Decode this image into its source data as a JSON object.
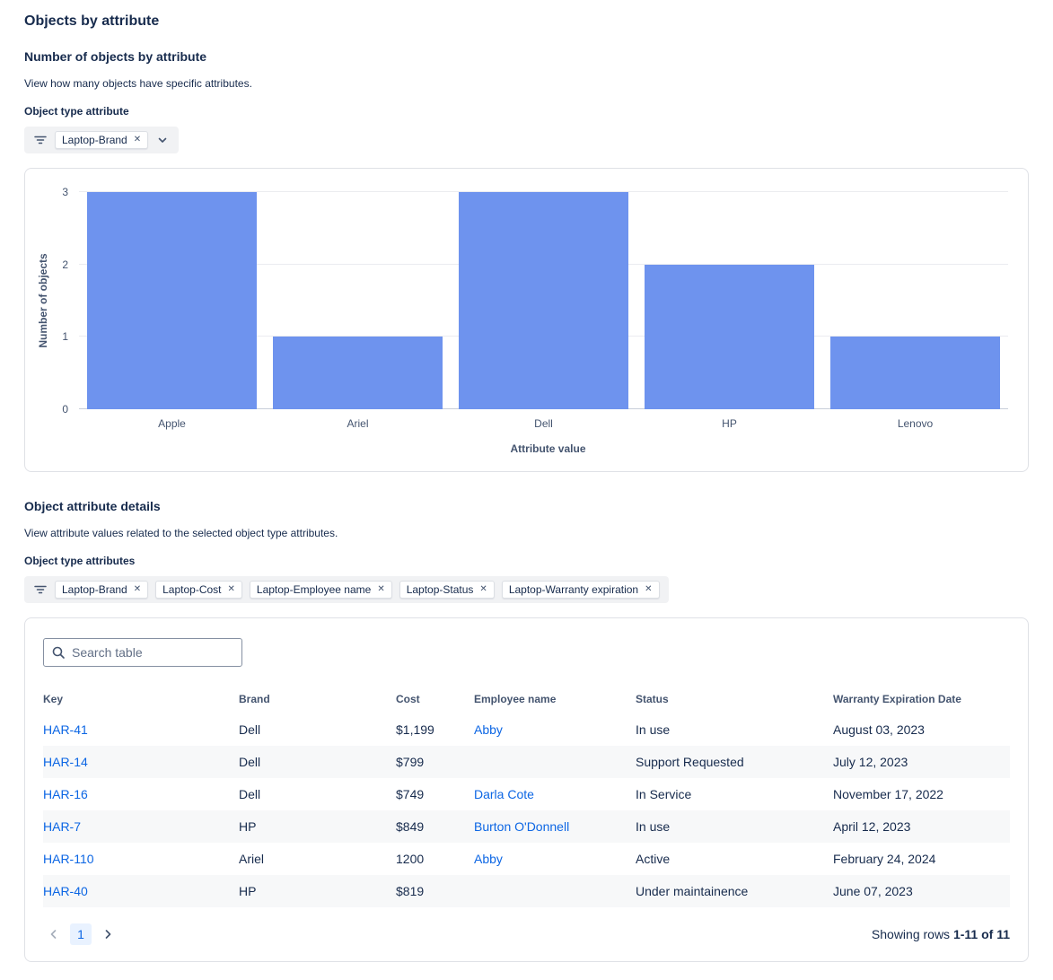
{
  "page": {
    "title": "Objects by attribute"
  },
  "chart_section": {
    "heading": "Number of objects by attribute",
    "description": "View how many objects have specific attributes.",
    "filter_label": "Object type attribute",
    "chips": [
      "Laptop-Brand"
    ]
  },
  "chart_data": {
    "type": "bar",
    "categories": [
      "Apple",
      "Ariel",
      "Dell",
      "HP",
      "Lenovo"
    ],
    "values": [
      3,
      1,
      3,
      2,
      1
    ],
    "title": "",
    "xlabel": "Attribute value",
    "ylabel": "Number of objects",
    "ylim": [
      0,
      3
    ],
    "yticks": [
      0,
      1,
      2,
      3
    ],
    "bar_color": "#6e93ee",
    "grid": true,
    "legend": "none"
  },
  "details_section": {
    "heading": "Object attribute details",
    "description": "View attribute values related to the selected object type attributes.",
    "filter_label": "Object type attributes",
    "chips": [
      "Laptop-Brand",
      "Laptop-Cost",
      "Laptop-Employee name",
      "Laptop-Status",
      "Laptop-Warranty expiration"
    ]
  },
  "table": {
    "search_placeholder": "Search table",
    "columns": [
      "Key",
      "Brand",
      "Cost",
      "Employee name",
      "Status",
      "Warranty Expiration Date"
    ],
    "rows": [
      {
        "key": "HAR-41",
        "brand": "Dell",
        "cost": "$1,199",
        "employee": "Abby",
        "status": "In use",
        "warranty": "August 03, 2023"
      },
      {
        "key": "HAR-14",
        "brand": "Dell",
        "cost": "$799",
        "employee": "",
        "status": "Support Requested",
        "warranty": "July 12, 2023"
      },
      {
        "key": "HAR-16",
        "brand": "Dell",
        "cost": "$749",
        "employee": "Darla Cote",
        "status": "In Service",
        "warranty": "November 17, 2022"
      },
      {
        "key": "HAR-7",
        "brand": "HP",
        "cost": "$849",
        "employee": "Burton O'Donnell",
        "status": "In use",
        "warranty": "April 12, 2023"
      },
      {
        "key": "HAR-110",
        "brand": "Ariel",
        "cost": "1200",
        "employee": "Abby",
        "status": "Active",
        "warranty": "February 24, 2024"
      },
      {
        "key": "HAR-40",
        "brand": "HP",
        "cost": "$819",
        "employee": "",
        "status": "Under maintainence",
        "warranty": "June 07, 2023"
      }
    ],
    "pagination": {
      "current_page": "1",
      "summary_prefix": "Showing rows",
      "summary_range": "1-11 of 11"
    }
  }
}
